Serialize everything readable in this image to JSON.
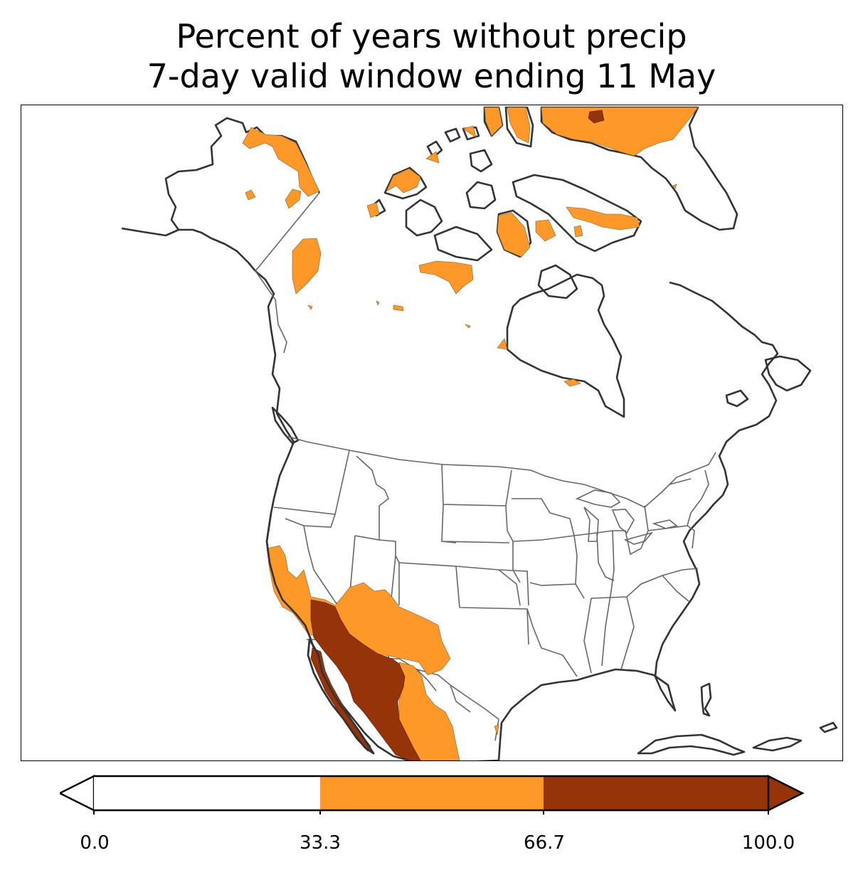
{
  "title": {
    "line1": "Percent of years without precip",
    "line2": "7-day valid window ending 11 May"
  },
  "legend": {
    "type": "colorbar",
    "extend": "both",
    "bins": [
      {
        "from": 0.0,
        "to": 33.3,
        "color": "#ffffff"
      },
      {
        "from": 33.3,
        "to": 66.7,
        "color": "#fd9829"
      },
      {
        "from": 66.7,
        "to": 100.0,
        "color": "#963409"
      }
    ],
    "ticks": [
      "0.0",
      "33.3",
      "66.7",
      "100.0"
    ]
  },
  "map": {
    "region": "North America",
    "coastline_color": "#333333",
    "border_color": "#666666"
  }
}
